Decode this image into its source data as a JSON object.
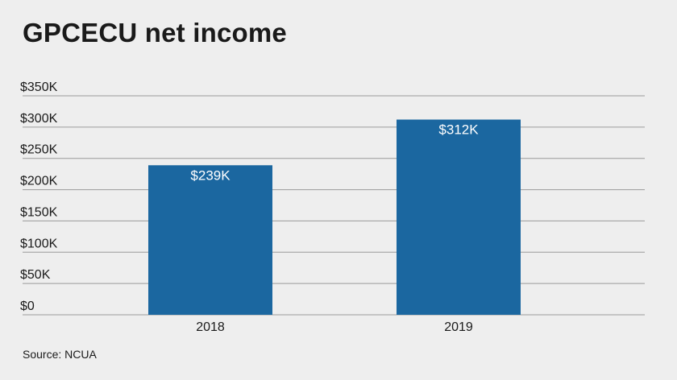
{
  "chart_data": {
    "type": "bar",
    "title": "GPCECU net income",
    "categories": [
      "2018",
      "2019"
    ],
    "values": [
      239,
      312
    ],
    "data_labels": [
      "$239K",
      "$312K"
    ],
    "y_ticks": [
      0,
      50,
      100,
      150,
      200,
      250,
      300,
      350
    ],
    "y_tick_labels": [
      "$0",
      "$50K",
      "$100K",
      "$150K",
      "$200K",
      "$250K",
      "$300K",
      "$350K"
    ],
    "ylim": [
      0,
      350
    ],
    "xlabel": "",
    "ylabel": "",
    "grid": true,
    "legend": "none",
    "bar_color": "#1b67a0",
    "grid_color": "#9a9a9a"
  },
  "source": "Source: NCUA"
}
